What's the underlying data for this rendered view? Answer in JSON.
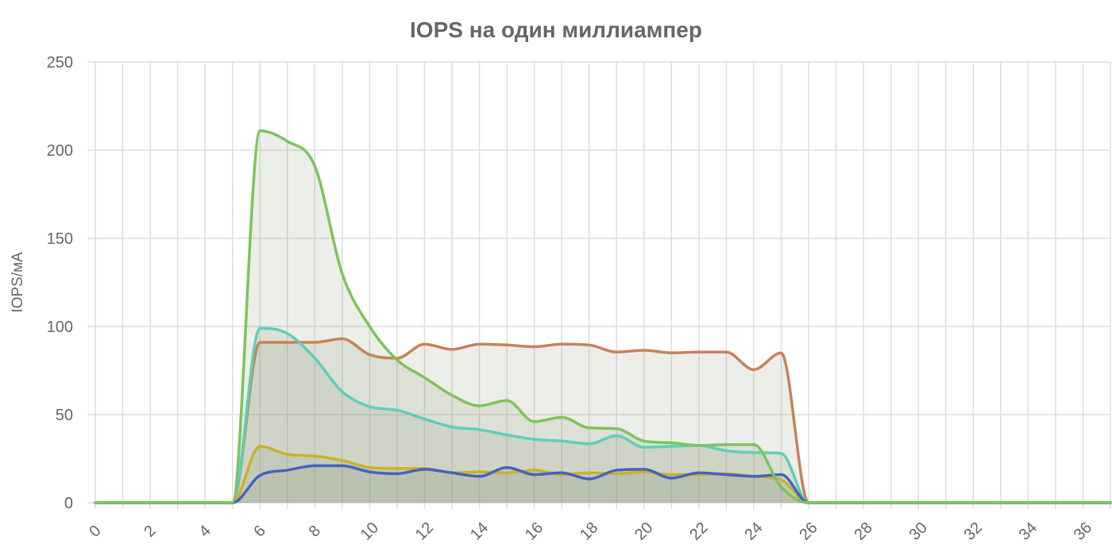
{
  "chart_data": {
    "type": "area",
    "title": "IOPS на один миллиампер",
    "xlabel": "",
    "ylabel": "IOPS/мА",
    "xlim": [
      0,
      37
    ],
    "ylim": [
      0,
      250
    ],
    "x_ticks": [
      0,
      2,
      4,
      6,
      8,
      10,
      12,
      14,
      16,
      18,
      20,
      22,
      24,
      26,
      28,
      30,
      32,
      34,
      36
    ],
    "y_ticks": [
      0,
      50,
      100,
      150,
      200,
      250
    ],
    "grid": true,
    "legend": "none",
    "series": [
      {
        "color": "#c8825a",
        "points": [
          [
            0,
            0
          ],
          [
            5,
            0
          ],
          [
            6,
            91
          ],
          [
            7,
            91
          ],
          [
            8,
            91
          ],
          [
            9,
            93
          ],
          [
            10,
            84
          ],
          [
            11,
            82
          ],
          [
            12,
            90
          ],
          [
            13,
            87
          ],
          [
            14,
            90
          ],
          [
            15,
            89.5
          ],
          [
            16,
            88.5
          ],
          [
            17,
            90
          ],
          [
            18,
            89.5
          ],
          [
            19,
            85.5
          ],
          [
            20,
            86.5
          ],
          [
            21,
            85
          ],
          [
            22,
            85.5
          ],
          [
            23,
            85.5
          ],
          [
            24,
            75.5
          ],
          [
            25,
            85
          ],
          [
            26,
            0
          ],
          [
            37,
            0
          ]
        ]
      },
      {
        "color": "#5dcfb8",
        "points": [
          [
            0,
            0
          ],
          [
            5,
            0
          ],
          [
            6,
            99
          ],
          [
            7,
            96
          ],
          [
            8,
            82
          ],
          [
            9,
            63
          ],
          [
            10,
            54.5
          ],
          [
            11,
            52.5
          ],
          [
            12,
            47.5
          ],
          [
            13,
            43
          ],
          [
            14,
            41.5
          ],
          [
            15,
            38.5
          ],
          [
            16,
            36
          ],
          [
            17,
            35
          ],
          [
            18,
            33.5
          ],
          [
            19,
            38
          ],
          [
            20,
            31.5
          ],
          [
            21,
            32
          ],
          [
            22,
            32.5
          ],
          [
            23,
            29.5
          ],
          [
            24,
            28.5
          ],
          [
            25,
            28
          ],
          [
            26,
            0
          ],
          [
            37,
            0
          ]
        ]
      },
      {
        "color": "#cbb128",
        "points": [
          [
            0,
            0
          ],
          [
            5,
            0
          ],
          [
            6,
            32
          ],
          [
            7,
            27.5
          ],
          [
            8,
            26.5
          ],
          [
            9,
            24
          ],
          [
            10,
            20
          ],
          [
            11,
            19.5
          ],
          [
            12,
            19.5
          ],
          [
            13,
            17
          ],
          [
            14,
            17.5
          ],
          [
            15,
            17
          ],
          [
            16,
            18.5
          ],
          [
            17,
            16
          ],
          [
            18,
            17
          ],
          [
            19,
            16.5
          ],
          [
            20,
            17.5
          ],
          [
            21,
            16
          ],
          [
            22,
            16
          ],
          [
            23,
            16.5
          ],
          [
            24,
            15
          ],
          [
            25,
            13
          ],
          [
            26,
            0
          ],
          [
            37,
            0
          ]
        ]
      },
      {
        "color": "#4263c0",
        "points": [
          [
            0,
            0
          ],
          [
            5,
            0
          ],
          [
            6,
            15.5
          ],
          [
            7,
            18.5
          ],
          [
            8,
            21
          ],
          [
            9,
            21
          ],
          [
            10,
            17.5
          ],
          [
            11,
            16.5
          ],
          [
            12,
            19
          ],
          [
            13,
            17
          ],
          [
            14,
            15
          ],
          [
            15,
            20
          ],
          [
            16,
            16
          ],
          [
            17,
            17
          ],
          [
            18,
            13.5
          ],
          [
            19,
            18.5
          ],
          [
            20,
            19
          ],
          [
            21,
            14
          ],
          [
            22,
            17
          ],
          [
            23,
            16
          ],
          [
            24,
            15
          ],
          [
            25,
            16
          ],
          [
            26,
            0
          ],
          [
            37,
            0
          ]
        ]
      },
      {
        "color": "#7dc45d",
        "points": [
          [
            0,
            0
          ],
          [
            5,
            0
          ],
          [
            6,
            211
          ],
          [
            7,
            205
          ],
          [
            8,
            191
          ],
          [
            9,
            130
          ],
          [
            10,
            100
          ],
          [
            11,
            81
          ],
          [
            12,
            71
          ],
          [
            13,
            61
          ],
          [
            14,
            55
          ],
          [
            15,
            58
          ],
          [
            16,
            46
          ],
          [
            17,
            48.5
          ],
          [
            18,
            42.5
          ],
          [
            19,
            42
          ],
          [
            20,
            35
          ],
          [
            21,
            34
          ],
          [
            22,
            32.5
          ],
          [
            23,
            33
          ],
          [
            24,
            33
          ],
          [
            25,
            9
          ],
          [
            26,
            0
          ],
          [
            37,
            0
          ]
        ]
      }
    ]
  }
}
